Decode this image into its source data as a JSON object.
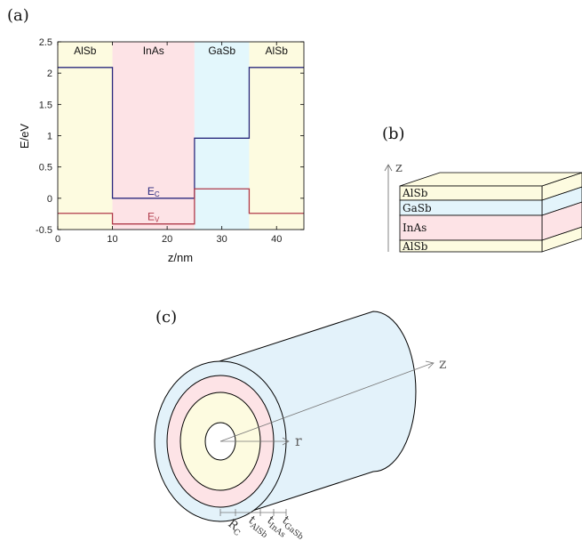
{
  "panels": {
    "a": {
      "label": "(a)"
    },
    "b": {
      "label": "(b)"
    },
    "c": {
      "label": "(c)"
    }
  },
  "chart_data": {
    "type": "line",
    "xlabel": "z/nm",
    "ylabel": "E/eV",
    "xlim": [
      0,
      45
    ],
    "ylim": [
      -0.5,
      2.5
    ],
    "xticks": [
      0,
      10,
      20,
      30,
      40
    ],
    "yticks": [
      -0.5,
      0,
      0.5,
      1,
      1.5,
      2,
      2.5
    ],
    "grid": false,
    "regions": [
      {
        "label": "AlSb",
        "x": [
          0,
          10
        ],
        "color": "#fdfbe0"
      },
      {
        "label": "InAs",
        "x": [
          10,
          25
        ],
        "color": "#fde3e6"
      },
      {
        "label": "GaSb",
        "x": [
          25,
          35
        ],
        "color": "#e3f7fc"
      },
      {
        "label": "AlSb",
        "x": [
          35,
          45
        ],
        "color": "#fdfbe0"
      }
    ],
    "series": [
      {
        "name": "E_C",
        "label_main": "E",
        "label_sub": "C",
        "color": "#2a2a7e",
        "x": [
          0,
          10,
          10,
          25,
          25,
          35,
          35,
          45
        ],
        "y": [
          2.09,
          2.09,
          0.0,
          0.0,
          0.96,
          0.96,
          2.09,
          2.09
        ]
      },
      {
        "name": "E_V",
        "label_main": "E",
        "label_sub": "V",
        "color": "#b03a4a",
        "x": [
          0,
          10,
          10,
          25,
          25,
          35,
          35,
          45
        ],
        "y": [
          -0.24,
          -0.24,
          -0.41,
          -0.41,
          0.15,
          0.15,
          -0.24,
          -0.24
        ]
      }
    ]
  },
  "stack": {
    "axis_label": "z",
    "layers": [
      {
        "label": "AlSb",
        "color": "#fdfbe0"
      },
      {
        "label": "GaSb",
        "color": "#e3f4fb"
      },
      {
        "label": "InAs",
        "color": "#fde3e6"
      },
      {
        "label": "AlSb",
        "color": "#fdfbe0"
      }
    ]
  },
  "cylinder": {
    "z_label": "z",
    "r_label": "r",
    "colors": {
      "outer": "#e3f2fa",
      "inas": "#fde3e6",
      "alsb": "#fdfbe0",
      "core": "#ffffff"
    },
    "dimension_labels": [
      {
        "main": "R",
        "sub": "C"
      },
      {
        "main": "t",
        "sub": "AlSb"
      },
      {
        "main": "t",
        "sub": "InAs"
      },
      {
        "main": "t",
        "sub": "GaSb"
      }
    ]
  }
}
